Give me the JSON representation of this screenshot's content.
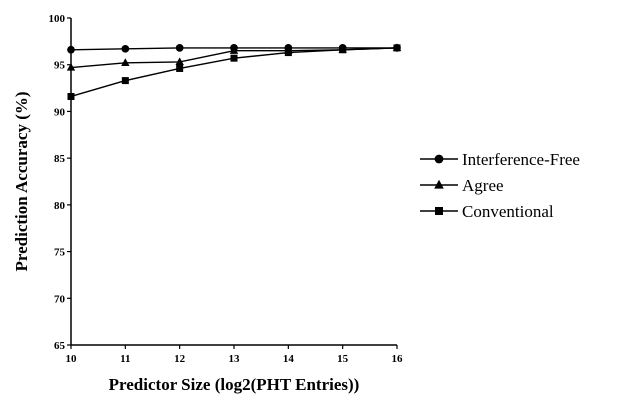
{
  "chart_data": {
    "type": "line",
    "xlabel": "Predictor Size (log2(PHT Entries))",
    "ylabel": "Prediction Accuracy (%)",
    "xlim": [
      10,
      16
    ],
    "ylim": [
      65,
      100
    ],
    "x": [
      10,
      11,
      12,
      13,
      14,
      15,
      16
    ],
    "x_ticks": [
      "10",
      "11",
      "12",
      "13",
      "14",
      "15",
      "16"
    ],
    "y_ticks": [
      "65",
      "70",
      "75",
      "80",
      "85",
      "90",
      "95",
      "100"
    ],
    "y_tick_values": [
      65,
      70,
      75,
      80,
      85,
      90,
      95,
      100
    ],
    "grid": false,
    "legend_position": "right",
    "series": [
      {
        "name": "Interference-Free",
        "marker": "circle",
        "values": [
          96.6,
          96.7,
          96.8,
          96.8,
          96.8,
          96.8,
          96.8
        ]
      },
      {
        "name": "Agree",
        "marker": "triangle",
        "values": [
          94.7,
          95.2,
          95.3,
          96.5,
          96.5,
          96.6,
          96.8
        ]
      },
      {
        "name": "Conventional",
        "marker": "square",
        "values": [
          91.6,
          93.3,
          94.6,
          95.7,
          96.3,
          96.6,
          96.8
        ]
      }
    ]
  }
}
